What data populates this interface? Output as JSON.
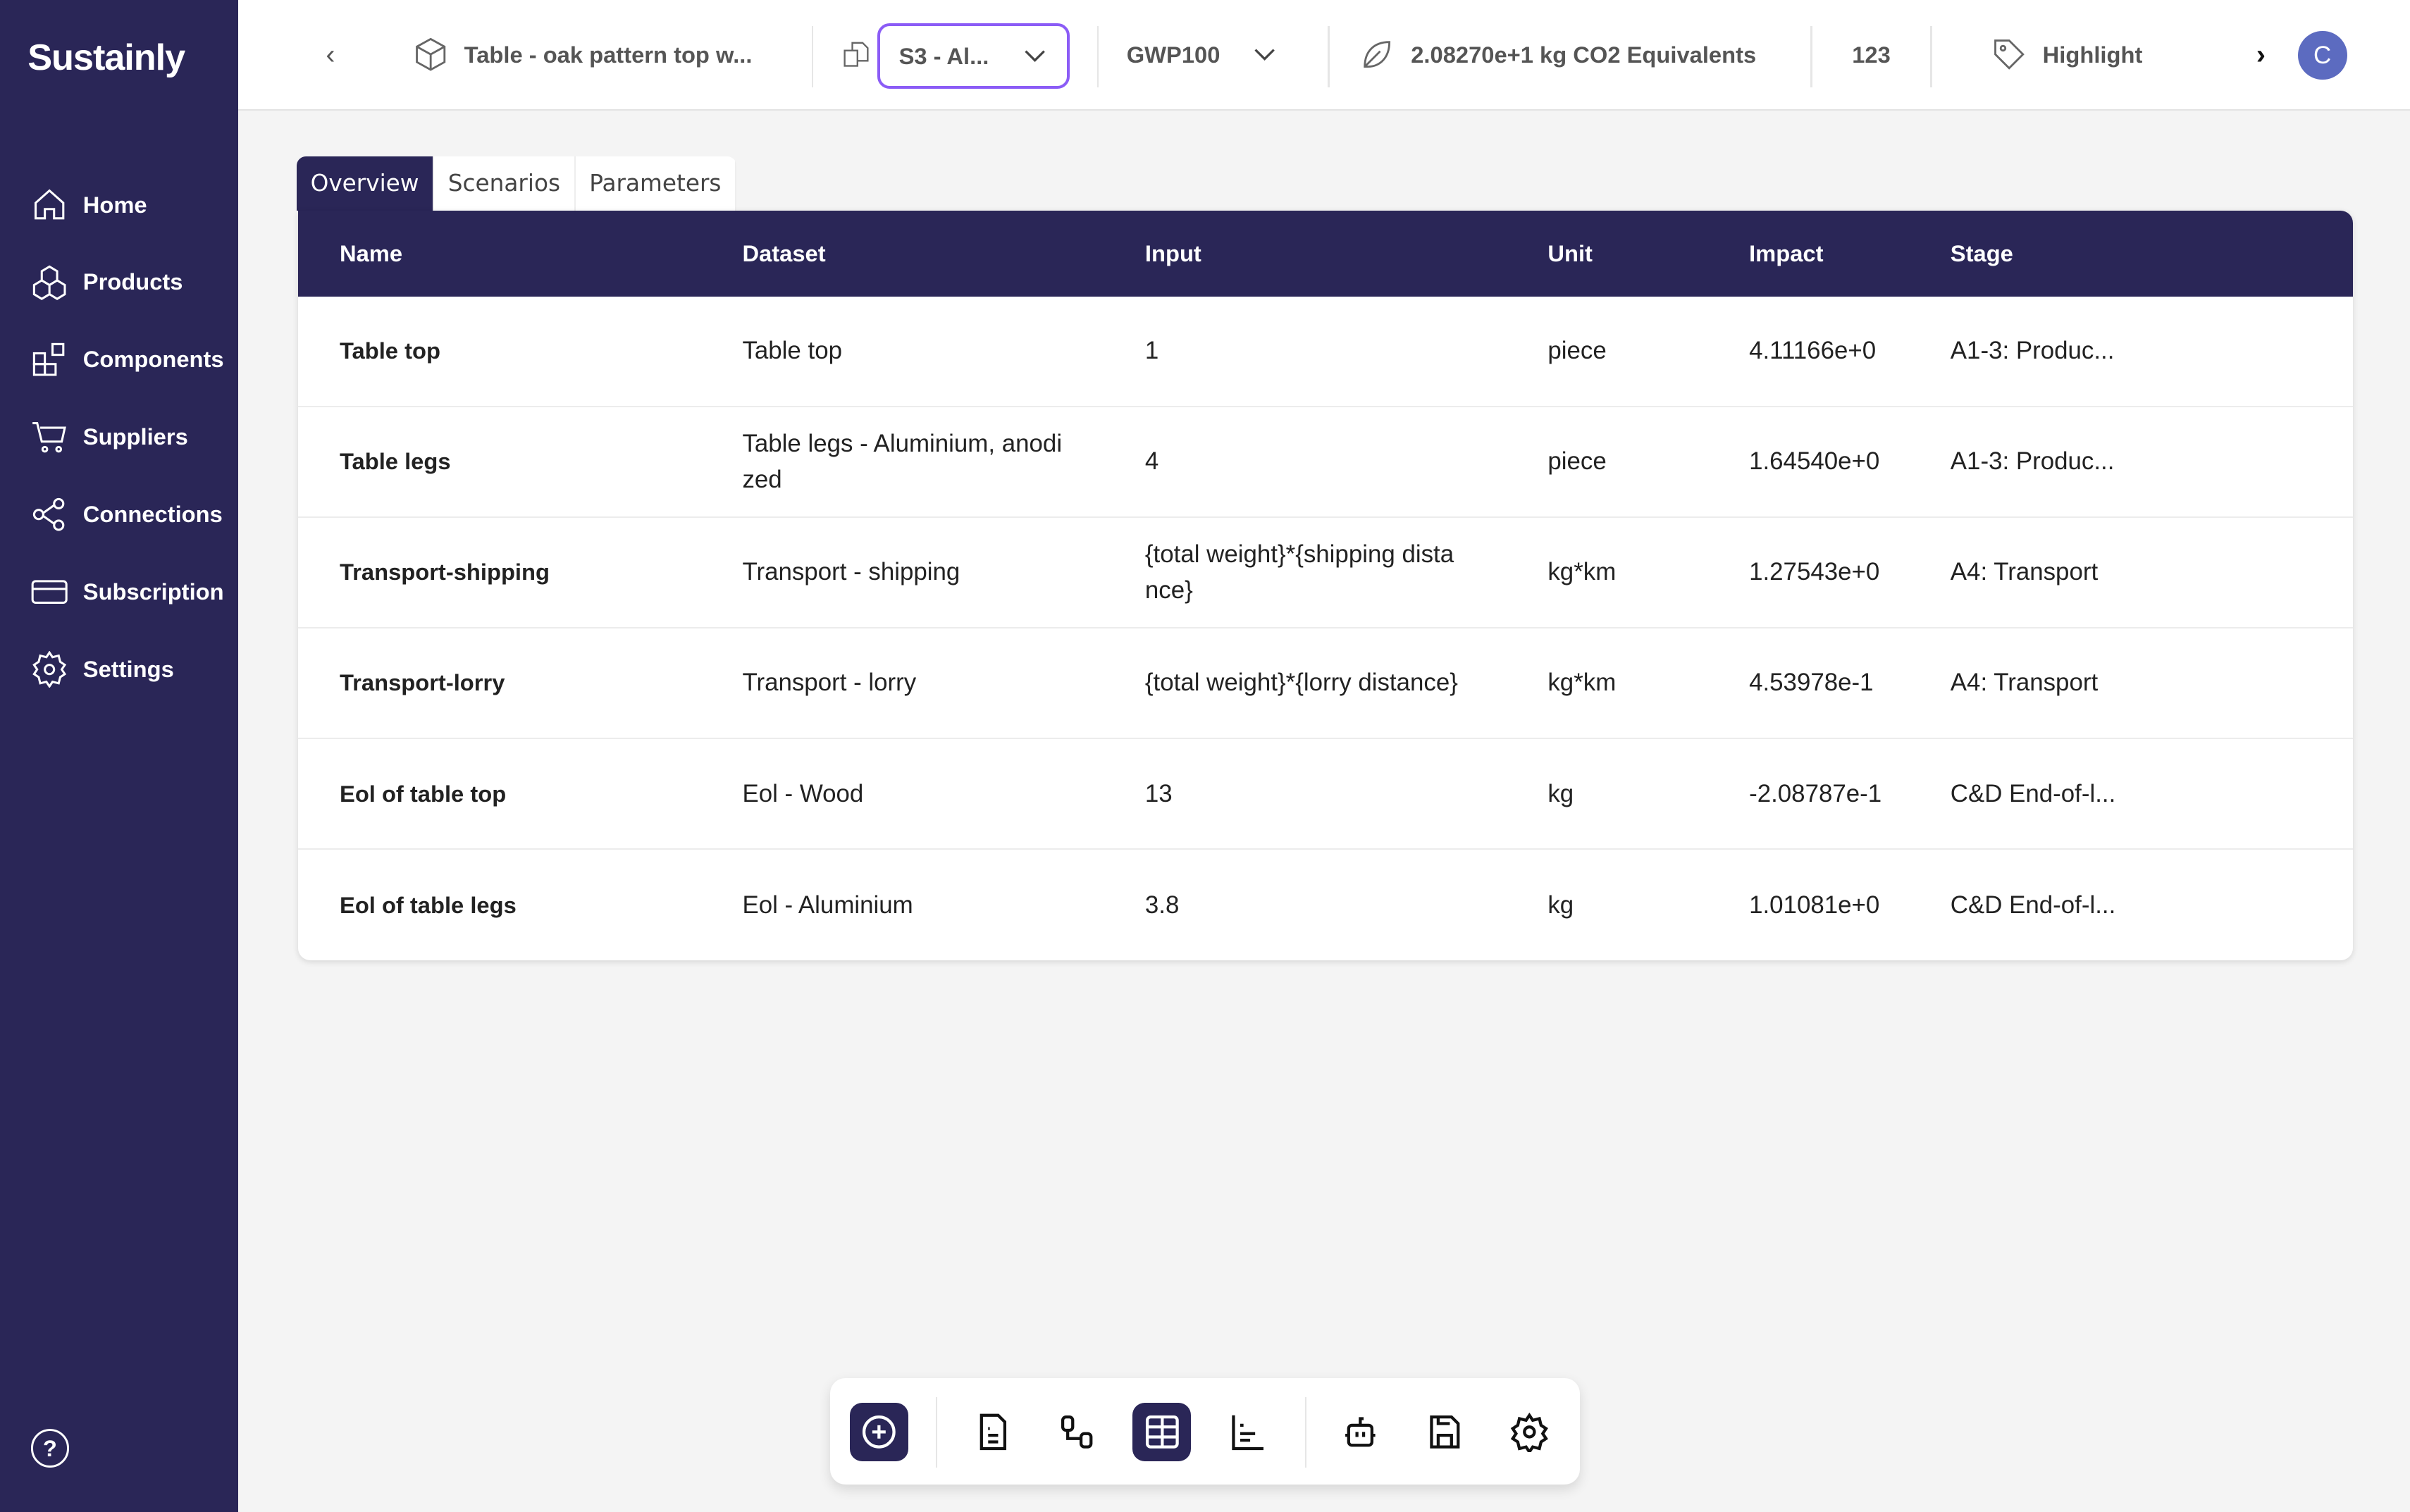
{
  "app": {
    "logo": "Sustainly"
  },
  "sidebar": {
    "items": [
      {
        "label": "Home",
        "icon": "home-icon"
      },
      {
        "label": "Products",
        "icon": "products-icon"
      },
      {
        "label": "Components",
        "icon": "components-icon"
      },
      {
        "label": "Suppliers",
        "icon": "cart-icon"
      },
      {
        "label": "Connections",
        "icon": "share-icon"
      },
      {
        "label": "Subscription",
        "icon": "card-icon"
      },
      {
        "label": "Settings",
        "icon": "gear-icon"
      }
    ],
    "help": "?"
  },
  "topbar": {
    "product": "Table - oak pattern top w...",
    "scenario": "S3 - Al...",
    "method": "GWP100",
    "impact": "2.08270e+1  kg CO2 Equivalents",
    "format": "123",
    "highlight": "Highlight",
    "avatar": "C"
  },
  "tabs": [
    "Overview",
    "Scenarios",
    "Parameters"
  ],
  "table": {
    "headers": [
      "Name",
      "Dataset",
      "Input",
      "Unit",
      "Impact",
      "Stage"
    ],
    "rows": [
      [
        "Table top",
        "Table top",
        "1",
        "piece",
        "4.11166e+0",
        "A1-3: Produc..."
      ],
      [
        "Table legs",
        "Table legs - Aluminium, anodi zed",
        "4",
        "piece",
        "1.64540e+0",
        "A1-3: Produc..."
      ],
      [
        "Transport-shipping",
        "Transport - shipping",
        "{total weight}*{shipping dista nce}",
        "kg*km",
        "1.27543e+0",
        "A4: Transport"
      ],
      [
        "Transport-lorry",
        "Transport - lorry",
        "{total weight}*{lorry distance}",
        "kg*km",
        "4.53978e-1",
        "A4: Transport"
      ],
      [
        "Eol of table top",
        "Eol - Wood",
        "13",
        "kg",
        "-2.08787e-1",
        "C&D End-of-l..."
      ],
      [
        "Eol of table legs",
        "Eol - Aluminium",
        "3.8",
        "kg",
        "1.01081e+0",
        "C&D End-of-l..."
      ]
    ]
  },
  "colors": {
    "sidebar": "#2a2657",
    "accent": "#8b5cf6",
    "avatar": "#5c6bc0"
  }
}
